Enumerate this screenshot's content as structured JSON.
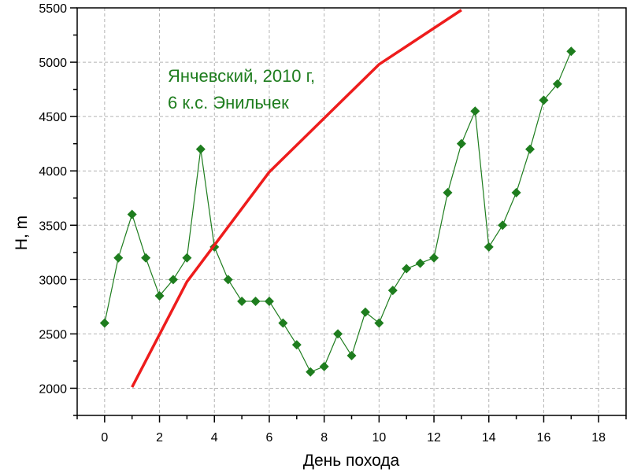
{
  "chart_data": {
    "type": "line",
    "xlabel": "День похода",
    "ylabel": "H, m",
    "xlim": [
      -1,
      19
    ],
    "ylim": [
      1750,
      5500
    ],
    "xticks": [
      0,
      2,
      4,
      6,
      8,
      10,
      12,
      14,
      16,
      18
    ],
    "yticks": [
      2000,
      2500,
      3000,
      3500,
      4000,
      4500,
      5000,
      5500
    ],
    "grid": true,
    "annotation": [
      "Янчевский, 2010 г,",
      "6 к.с. Энильчек"
    ],
    "series": [
      {
        "color": "#1e7d1e",
        "marker": "diamond",
        "x": [
          0,
          0.5,
          1,
          1.5,
          2,
          2.5,
          3,
          3.5,
          4,
          4.5,
          5,
          5.5,
          6,
          6.5,
          7,
          7.5,
          8,
          8.5,
          9,
          9.5,
          10,
          10.5,
          11,
          11.5,
          12,
          12.5,
          13,
          13.5,
          14,
          14.5,
          15,
          15.5,
          16,
          16.5,
          17
        ],
        "y": [
          2600,
          3200,
          3600,
          3200,
          2850,
          3000,
          3200,
          4200,
          3300,
          3000,
          2800,
          2800,
          2800,
          2600,
          2400,
          2150,
          2200,
          2500,
          2300,
          2700,
          2600,
          2900,
          3100,
          3150,
          3200,
          3800,
          4250,
          4550,
          3300,
          3500,
          3800,
          4200,
          4650,
          4800,
          5100
        ]
      },
      {
        "color": "#ee1c1c",
        "marker": "none",
        "x": [
          1,
          3,
          6,
          10,
          13
        ],
        "y": [
          2010,
          2980,
          3990,
          4980,
          5480
        ]
      }
    ]
  }
}
